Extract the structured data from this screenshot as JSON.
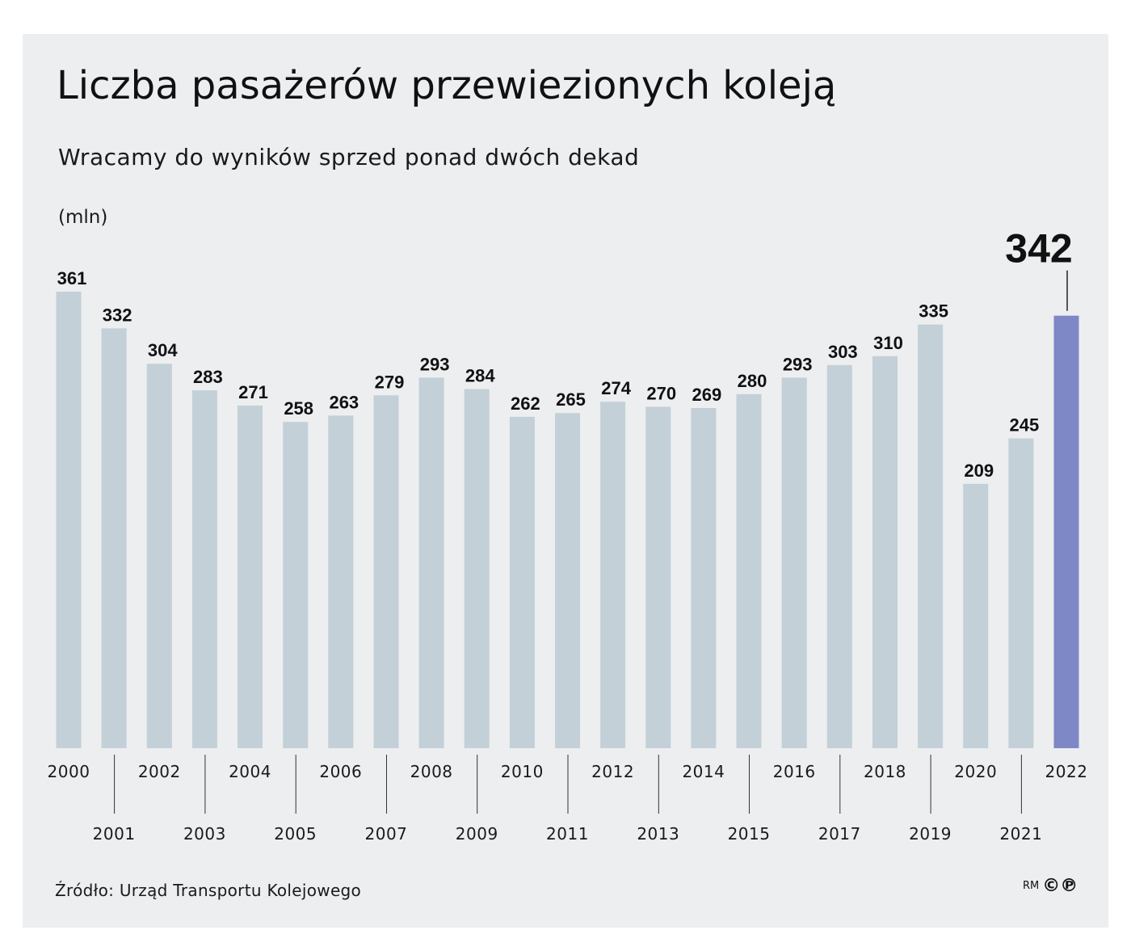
{
  "header": {
    "title": "Liczba pasażerów przewiezionych koleją",
    "subtitle": "Wracamy do wyników sprzed ponad dwóch dekad",
    "unit": "(mln)"
  },
  "footer": {
    "source": "Źródło: Urząd Transportu Kolejowego",
    "logo_initials": "RM",
    "logo_mark": "©℗"
  },
  "colors": {
    "background": "#eceef0",
    "bar": "#c3d0d7",
    "highlight_bar": "#7f88c6",
    "text": "#111111"
  },
  "chart_data": {
    "type": "bar",
    "title": "Liczba pasażerów przewiezionych koleją",
    "subtitle": "Wracamy do wyników sprzed ponad dwóch dekad",
    "ylabel": "(mln)",
    "xlabel": "",
    "categories": [
      "2000",
      "2001",
      "2002",
      "2003",
      "2004",
      "2005",
      "2006",
      "2007",
      "2008",
      "2009",
      "2010",
      "2011",
      "2012",
      "2013",
      "2014",
      "2015",
      "2016",
      "2017",
      "2018",
      "2019",
      "2020",
      "2021",
      "2022"
    ],
    "values": [
      361,
      332,
      304,
      283,
      271,
      258,
      263,
      279,
      293,
      284,
      262,
      265,
      274,
      270,
      269,
      280,
      293,
      303,
      310,
      335,
      209,
      245,
      342
    ],
    "highlight": "2022",
    "ylim": [
      0,
      361
    ],
    "grid": false,
    "legend": "none"
  }
}
